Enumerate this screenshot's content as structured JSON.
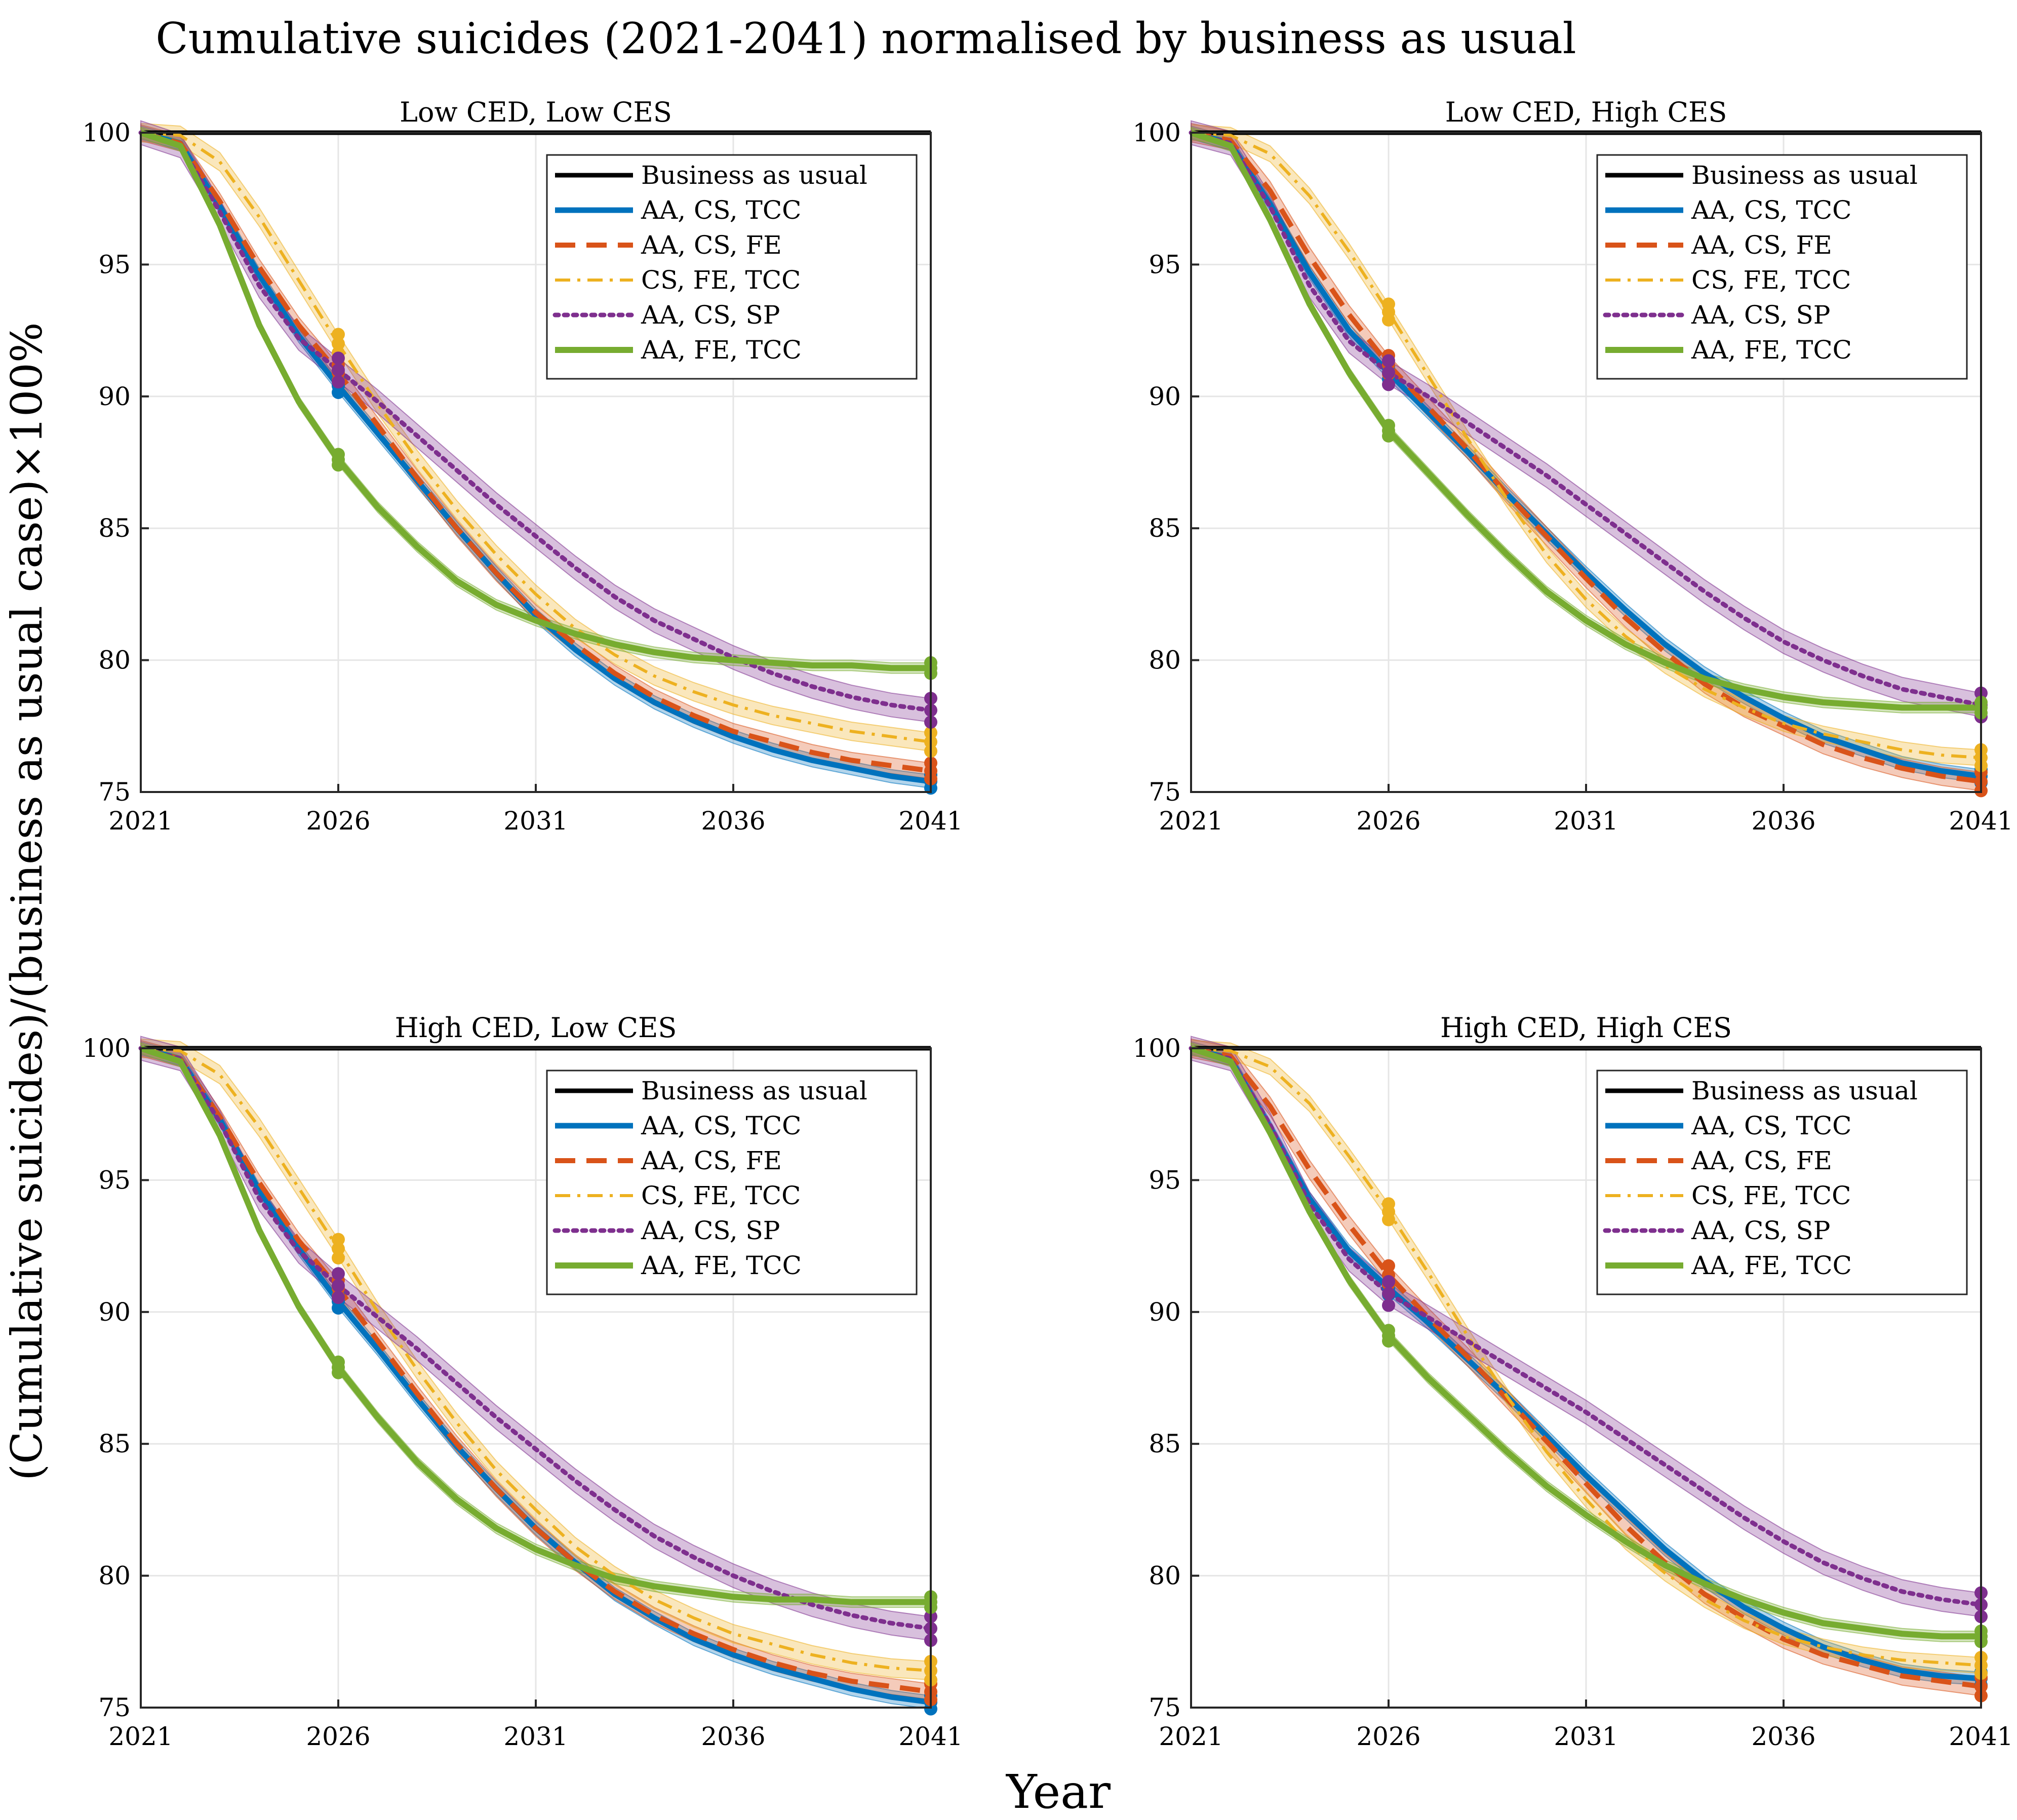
{
  "figure": {
    "title": "Cumulative suicides (2021-2041) normalised by business as usual",
    "ylabel": "(Cumulative suicides)/(business as usual case)×100%",
    "xlabel": "Year"
  },
  "colors": {
    "bau": "#000000",
    "aa_cs_tcc": "#0072bd",
    "aa_cs_fe": "#d95319",
    "cs_fe_tcc": "#edb120",
    "aa_cs_sp": "#7e2f8e",
    "aa_fe_tcc": "#77ac30"
  },
  "chart_data": [
    {
      "type": "line",
      "title": "Low CED, Low CES",
      "x": [
        2021,
        2022,
        2023,
        2024,
        2025,
        2026,
        2027,
        2028,
        2029,
        2030,
        2031,
        2032,
        2033,
        2034,
        2035,
        2036,
        2037,
        2038,
        2039,
        2040,
        2041
      ],
      "xticks": [
        "2021",
        "2026",
        "2031",
        "2036",
        "2041"
      ],
      "yticks": [
        "75",
        "80",
        "85",
        "90",
        "95",
        "100"
      ],
      "xlim": [
        2021,
        2041
      ],
      "ylim": [
        75,
        100
      ],
      "grid": true,
      "legend_position": "top-right",
      "series": [
        {
          "name": "Business as usual",
          "key": "bau",
          "dash": "solid",
          "band": 0,
          "values": [
            100,
            100,
            100,
            100,
            100,
            100,
            100,
            100,
            100,
            100,
            100,
            100,
            100,
            100,
            100,
            100,
            100,
            100,
            100,
            100,
            100
          ]
        },
        {
          "name": "AA, CS, TCC",
          "key": "aa_cs_tcc",
          "dash": "solid",
          "band": 0.25,
          "values": [
            100,
            99.6,
            97.2,
            94.6,
            92.3,
            90.4,
            88.6,
            86.8,
            85.0,
            83.3,
            81.7,
            80.4,
            79.3,
            78.4,
            77.7,
            77.1,
            76.6,
            76.2,
            75.9,
            75.6,
            75.4
          ]
        },
        {
          "name": "AA, CS, FE",
          "key": "aa_cs_fe",
          "dash": "dash",
          "band": 0.3,
          "values": [
            100,
            99.6,
            97.4,
            94.9,
            92.7,
            90.9,
            88.9,
            86.9,
            85.0,
            83.3,
            81.8,
            80.6,
            79.5,
            78.6,
            77.9,
            77.3,
            76.9,
            76.5,
            76.2,
            76.0,
            75.8
          ]
        },
        {
          "name": "CS, FE, TCC",
          "key": "cs_fe_tcc",
          "dash": "dashdot",
          "band": 0.35,
          "values": [
            100,
            99.9,
            98.9,
            96.8,
            94.4,
            92.0,
            89.7,
            87.6,
            85.7,
            84.0,
            82.5,
            81.2,
            80.2,
            79.4,
            78.8,
            78.3,
            77.9,
            77.6,
            77.3,
            77.1,
            76.9
          ]
        },
        {
          "name": "AA, CS, SP",
          "key": "aa_cs_sp",
          "dash": "dot",
          "band": 0.45,
          "values": [
            100,
            99.5,
            97.0,
            94.2,
            92.2,
            91.0,
            89.8,
            88.5,
            87.2,
            85.9,
            84.7,
            83.5,
            82.4,
            81.5,
            80.8,
            80.1,
            79.5,
            79.0,
            78.6,
            78.3,
            78.1
          ]
        },
        {
          "name": "AA, FE, TCC",
          "key": "aa_fe_tcc",
          "dash": "solid",
          "band": 0.2,
          "values": [
            100,
            99.5,
            96.5,
            92.7,
            89.8,
            87.6,
            85.8,
            84.3,
            83.0,
            82.1,
            81.5,
            81.0,
            80.6,
            80.3,
            80.1,
            80.0,
            79.9,
            79.8,
            79.8,
            79.7,
            79.7
          ]
        }
      ]
    },
    {
      "type": "line",
      "title": "Low CED, High CES",
      "x": [
        2021,
        2022,
        2023,
        2024,
        2025,
        2026,
        2027,
        2028,
        2029,
        2030,
        2031,
        2032,
        2033,
        2034,
        2035,
        2036,
        2037,
        2038,
        2039,
        2040,
        2041
      ],
      "xticks": [
        "2021",
        "2026",
        "2031",
        "2036",
        "2041"
      ],
      "yticks": [
        "75",
        "80",
        "85",
        "90",
        "95",
        "100"
      ],
      "xlim": [
        2021,
        2041
      ],
      "ylim": [
        75,
        100
      ],
      "grid": true,
      "legend_position": "top-right",
      "series": [
        {
          "name": "Business as usual",
          "key": "bau",
          "dash": "solid",
          "band": 0,
          "values": [
            100,
            100,
            100,
            100,
            100,
            100,
            100,
            100,
            100,
            100,
            100,
            100,
            100,
            100,
            100,
            100,
            100,
            100,
            100,
            100,
            100
          ]
        },
        {
          "name": "AA, CS, TCC",
          "key": "aa_cs_tcc",
          "dash": "solid",
          "band": 0.25,
          "values": [
            100,
            99.6,
            97.3,
            94.7,
            92.5,
            90.9,
            89.4,
            87.9,
            86.3,
            84.8,
            83.3,
            81.9,
            80.6,
            79.5,
            78.6,
            77.8,
            77.1,
            76.6,
            76.1,
            75.8,
            75.6
          ]
        },
        {
          "name": "AA, CS, FE",
          "key": "aa_cs_fe",
          "dash": "dash",
          "band": 0.35,
          "values": [
            100,
            99.7,
            97.8,
            95.3,
            93.1,
            91.2,
            89.6,
            88.0,
            86.3,
            84.7,
            83.1,
            81.6,
            80.3,
            79.1,
            78.2,
            77.5,
            76.8,
            76.3,
            75.9,
            75.6,
            75.4
          ]
        },
        {
          "name": "CS, FE, TCC",
          "key": "cs_fe_tcc",
          "dash": "dashdot",
          "band": 0.3,
          "values": [
            100,
            99.9,
            99.2,
            97.6,
            95.5,
            93.2,
            90.8,
            88.4,
            86.1,
            84.0,
            82.3,
            80.9,
            79.8,
            78.9,
            78.2,
            77.6,
            77.2,
            76.9,
            76.6,
            76.4,
            76.3
          ]
        },
        {
          "name": "AA, CS, SP",
          "key": "aa_cs_sp",
          "dash": "dot",
          "band": 0.45,
          "values": [
            100,
            99.6,
            97.2,
            94.2,
            92.1,
            90.9,
            90.0,
            89.0,
            88.0,
            87.0,
            85.9,
            84.8,
            83.7,
            82.6,
            81.6,
            80.7,
            80.0,
            79.4,
            78.9,
            78.6,
            78.3
          ]
        },
        {
          "name": "AA, FE, TCC",
          "key": "aa_fe_tcc",
          "dash": "solid",
          "band": 0.2,
          "values": [
            100,
            99.5,
            96.7,
            93.5,
            90.9,
            88.7,
            87.1,
            85.5,
            84.0,
            82.6,
            81.5,
            80.6,
            79.9,
            79.3,
            78.9,
            78.6,
            78.4,
            78.3,
            78.2,
            78.2,
            78.2
          ]
        }
      ]
    },
    {
      "type": "line",
      "title": "High CED, Low CES",
      "x": [
        2021,
        2022,
        2023,
        2024,
        2025,
        2026,
        2027,
        2028,
        2029,
        2030,
        2031,
        2032,
        2033,
        2034,
        2035,
        2036,
        2037,
        2038,
        2039,
        2040,
        2041
      ],
      "xticks": [
        "2021",
        "2026",
        "2031",
        "2036",
        "2041"
      ],
      "yticks": [
        "75",
        "80",
        "85",
        "90",
        "95",
        "100"
      ],
      "xlim": [
        2021,
        2041
      ],
      "ylim": [
        75,
        100
      ],
      "grid": true,
      "legend_position": "top-right",
      "series": [
        {
          "name": "Business as usual",
          "key": "bau",
          "dash": "solid",
          "band": 0,
          "values": [
            100,
            100,
            100,
            100,
            100,
            100,
            100,
            100,
            100,
            100,
            100,
            100,
            100,
            100,
            100,
            100,
            100,
            100,
            100,
            100,
            100
          ]
        },
        {
          "name": "AA, CS, TCC",
          "key": "aa_cs_tcc",
          "dash": "solid",
          "band": 0.25,
          "values": [
            100,
            99.6,
            97.3,
            94.6,
            92.4,
            90.4,
            88.6,
            86.7,
            84.9,
            83.3,
            81.8,
            80.5,
            79.3,
            78.4,
            77.6,
            77.0,
            76.5,
            76.1,
            75.7,
            75.4,
            75.2
          ]
        },
        {
          "name": "AA, CS, FE",
          "key": "aa_cs_fe",
          "dash": "dash",
          "band": 0.3,
          "values": [
            100,
            99.6,
            97.4,
            94.9,
            92.7,
            90.9,
            88.9,
            86.9,
            85.0,
            83.3,
            81.8,
            80.5,
            79.4,
            78.5,
            77.8,
            77.2,
            76.7,
            76.3,
            76.0,
            75.8,
            75.6
          ]
        },
        {
          "name": "CS, FE, TCC",
          "key": "cs_fe_tcc",
          "dash": "dashdot",
          "band": 0.35,
          "values": [
            100,
            99.9,
            99.0,
            97.0,
            94.7,
            92.4,
            90.0,
            87.8,
            85.8,
            84.0,
            82.5,
            81.1,
            80.0,
            79.1,
            78.4,
            77.8,
            77.4,
            77.0,
            76.7,
            76.5,
            76.4
          ]
        },
        {
          "name": "AA, CS, SP",
          "key": "aa_cs_sp",
          "dash": "dot",
          "band": 0.45,
          "values": [
            100,
            99.6,
            97.2,
            94.3,
            92.3,
            91.0,
            89.8,
            88.6,
            87.3,
            86.0,
            84.8,
            83.6,
            82.5,
            81.5,
            80.7,
            80.0,
            79.4,
            78.9,
            78.5,
            78.2,
            78.0
          ]
        },
        {
          "name": "AA, FE, TCC",
          "key": "aa_fe_tcc",
          "dash": "solid",
          "band": 0.2,
          "values": [
            100,
            99.5,
            96.7,
            93.1,
            90.2,
            87.9,
            86.0,
            84.3,
            82.9,
            81.8,
            81.0,
            80.4,
            79.9,
            79.6,
            79.4,
            79.2,
            79.1,
            79.1,
            79.0,
            79.0,
            79.0
          ]
        }
      ]
    },
    {
      "type": "line",
      "title": "High CED, High CES",
      "x": [
        2021,
        2022,
        2023,
        2024,
        2025,
        2026,
        2027,
        2028,
        2029,
        2030,
        2031,
        2032,
        2033,
        2034,
        2035,
        2036,
        2037,
        2038,
        2039,
        2040,
        2041
      ],
      "xticks": [
        "2021",
        "2026",
        "2031",
        "2036",
        "2041"
      ],
      "yticks": [
        "75",
        "80",
        "85",
        "90",
        "95",
        "100"
      ],
      "xlim": [
        2021,
        2041
      ],
      "ylim": [
        75,
        100
      ],
      "grid": true,
      "legend_position": "top-right",
      "series": [
        {
          "name": "Business as usual",
          "key": "bau",
          "dash": "solid",
          "band": 0,
          "values": [
            100,
            100,
            100,
            100,
            100,
            100,
            100,
            100,
            100,
            100,
            100,
            100,
            100,
            100,
            100,
            100,
            100,
            100,
            100,
            100,
            100
          ]
        },
        {
          "name": "AA, CS, TCC",
          "key": "aa_cs_tcc",
          "dash": "solid",
          "band": 0.25,
          "values": [
            100,
            99.6,
            97.0,
            94.3,
            92.3,
            90.9,
            89.6,
            88.2,
            86.8,
            85.3,
            83.8,
            82.4,
            81.0,
            79.8,
            78.8,
            78.0,
            77.3,
            76.8,
            76.4,
            76.2,
            76.1
          ]
        },
        {
          "name": "AA, CS, FE",
          "key": "aa_cs_fe",
          "dash": "dash",
          "band": 0.35,
          "values": [
            100,
            99.7,
            97.8,
            95.4,
            93.3,
            91.4,
            89.8,
            88.3,
            86.7,
            85.1,
            83.5,
            81.9,
            80.5,
            79.3,
            78.4,
            77.6,
            77.0,
            76.6,
            76.2,
            76.0,
            75.8
          ]
        },
        {
          "name": "CS, FE, TCC",
          "key": "cs_fe_tcc",
          "dash": "dashdot",
          "band": 0.3,
          "values": [
            100,
            99.9,
            99.3,
            97.9,
            95.9,
            93.8,
            91.5,
            89.1,
            86.8,
            84.7,
            82.9,
            81.3,
            80.1,
            79.1,
            78.3,
            77.7,
            77.3,
            77.0,
            76.8,
            76.7,
            76.6
          ]
        },
        {
          "name": "AA, CS, SP",
          "key": "aa_cs_sp",
          "dash": "dot",
          "band": 0.45,
          "values": [
            100,
            99.6,
            97.1,
            94.1,
            92.0,
            90.7,
            89.8,
            88.9,
            88.0,
            87.1,
            86.2,
            85.2,
            84.2,
            83.2,
            82.2,
            81.3,
            80.5,
            79.9,
            79.4,
            79.1,
            78.9
          ]
        },
        {
          "name": "AA, FE, TCC",
          "key": "aa_fe_tcc",
          "dash": "solid",
          "band": 0.2,
          "values": [
            100,
            99.5,
            96.8,
            93.8,
            91.2,
            89.1,
            87.5,
            86.1,
            84.7,
            83.4,
            82.3,
            81.3,
            80.4,
            79.7,
            79.1,
            78.6,
            78.2,
            78.0,
            77.8,
            77.7,
            77.7
          ]
        }
      ]
    }
  ]
}
